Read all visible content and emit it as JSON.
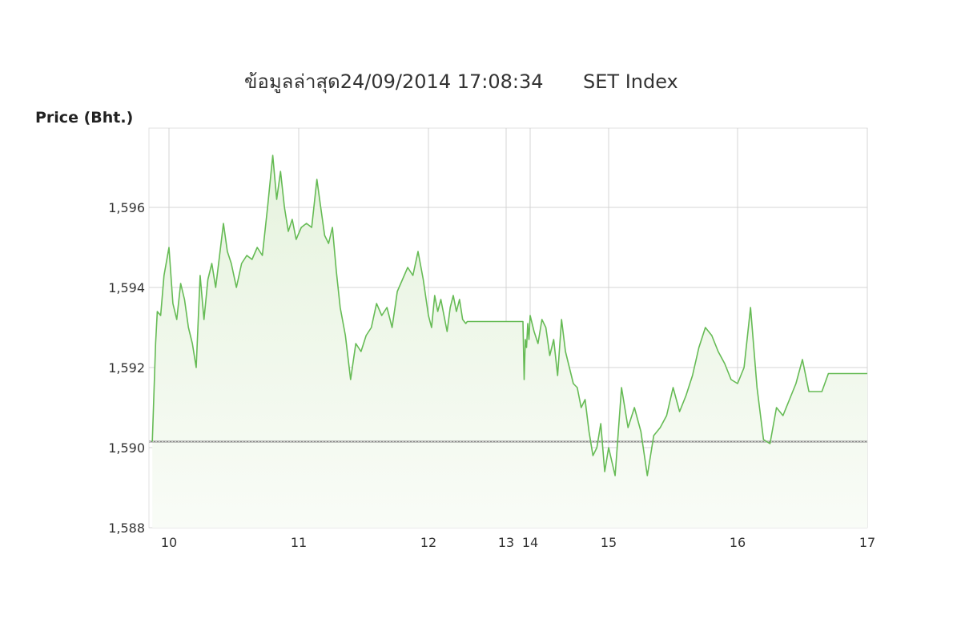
{
  "chart_data": {
    "type": "line",
    "title": "ข้อมูลล่าสุด24/09/2014 17:08:34",
    "subtitle": "SET Index",
    "ylabel": "Price (Bht.)",
    "xlabel": "",
    "ylim": [
      1588,
      1598
    ],
    "xlim": [
      9.88,
      17
    ],
    "yticks": [
      1588,
      1590,
      1592,
      1594,
      1596
    ],
    "ytick_labels": [
      "1,588",
      "1,590",
      "1,592",
      "1,594",
      "1,596"
    ],
    "xticks": [
      10,
      11,
      12,
      13,
      14,
      15,
      16,
      17
    ],
    "xtick_labels": [
      "10",
      "11",
      "12",
      "13",
      "14",
      "15",
      "16",
      "17"
    ],
    "grid": true,
    "reference_line": 1590.15,
    "colors": {
      "line": "#66bb55",
      "fill_top": "#e6f3de",
      "fill_bottom": "#f9fcf7",
      "grid": "#d4d4d4",
      "reference": "#888888"
    },
    "series": [
      {
        "x": [
          9.9,
          9.92,
          9.93,
          9.95,
          9.97,
          10.0,
          10.03,
          10.06,
          10.09,
          10.12,
          10.15,
          10.18,
          10.21,
          10.24,
          10.27,
          10.3,
          10.33,
          10.36,
          10.39,
          10.42,
          10.45,
          10.48,
          10.52,
          10.56,
          10.6,
          10.64,
          10.68,
          10.72,
          10.76,
          10.8,
          10.83,
          10.86,
          10.89,
          10.92,
          10.95,
          10.98,
          11.02,
          11.06,
          11.1,
          11.14,
          11.17,
          11.2,
          11.23,
          11.26,
          11.29,
          11.32,
          11.36,
          11.4,
          11.44,
          11.48,
          11.52,
          11.56,
          11.6,
          11.64,
          11.68,
          11.72,
          11.76,
          11.8,
          11.84,
          11.88,
          11.92,
          11.96,
          12.0,
          12.04,
          12.08,
          12.12,
          12.16,
          12.2,
          12.24,
          12.28,
          12.32,
          12.36,
          12.4,
          12.44,
          12.48,
          12.5,
          12.65,
          12.8,
          12.9,
          13.0,
          13.3,
          13.6,
          13.7,
          13.75,
          13.8,
          13.85,
          13.9,
          13.95,
          14.0,
          14.05,
          14.1,
          14.15,
          14.2,
          14.25,
          14.3,
          14.35,
          14.4,
          14.45,
          14.5,
          14.55,
          14.6,
          14.65,
          14.7,
          14.75,
          14.8,
          14.85,
          14.9,
          14.95,
          15.0,
          15.05,
          15.1,
          15.15,
          15.2,
          15.25,
          15.3,
          15.35,
          15.4,
          15.45,
          15.5,
          15.55,
          15.6,
          15.65,
          15.7,
          15.75,
          15.8,
          15.85,
          15.9,
          15.95,
          16.0,
          16.05,
          16.1,
          16.15,
          16.2,
          16.25,
          16.3,
          16.35,
          16.4,
          16.45,
          16.5,
          16.55,
          16.6,
          16.65,
          16.7,
          16.72,
          17.0
        ],
        "values": [
          1590.15,
          1592.6,
          1593.4,
          1593.3,
          1594.3,
          1595.0,
          1593.6,
          1593.2,
          1594.1,
          1593.7,
          1593.0,
          1592.6,
          1592.0,
          1594.3,
          1593.2,
          1594.2,
          1594.6,
          1594.0,
          1594.8,
          1595.6,
          1594.9,
          1594.6,
          1594.0,
          1594.6,
          1594.8,
          1594.7,
          1595.0,
          1594.8,
          1596.0,
          1597.3,
          1596.2,
          1596.9,
          1596.0,
          1595.4,
          1595.7,
          1595.2,
          1595.5,
          1595.6,
          1595.5,
          1596.7,
          1596.0,
          1595.3,
          1595.1,
          1595.5,
          1594.4,
          1593.5,
          1592.8,
          1591.7,
          1592.6,
          1592.4,
          1592.8,
          1593.0,
          1593.6,
          1593.3,
          1593.5,
          1593.0,
          1593.9,
          1594.2,
          1594.5,
          1594.3,
          1594.9,
          1594.2,
          1593.3,
          1593.0,
          1593.8,
          1593.4,
          1593.7,
          1593.3,
          1592.9,
          1593.5,
          1593.8,
          1593.4,
          1593.7,
          1593.2,
          1593.1,
          1593.15,
          1593.15,
          1593.15,
          1593.15,
          1593.15,
          1593.15,
          1593.15,
          1593.15,
          1591.7,
          1592.7,
          1592.5,
          1593.1,
          1592.7,
          1593.3,
          1592.9,
          1592.6,
          1593.2,
          1593.0,
          1592.3,
          1592.7,
          1591.8,
          1593.2,
          1592.4,
          1592.0,
          1591.6,
          1591.5,
          1591.0,
          1591.2,
          1590.4,
          1589.8,
          1590.0,
          1590.6,
          1589.4,
          1590.0,
          1589.3,
          1591.5,
          1590.5,
          1591.0,
          1590.4,
          1589.3,
          1590.3,
          1590.5,
          1590.8,
          1591.5,
          1590.9,
          1591.3,
          1591.8,
          1592.5,
          1593.0,
          1592.8,
          1592.4,
          1592.1,
          1591.7,
          1591.6,
          1592.0,
          1593.5,
          1591.5,
          1590.2,
          1590.1,
          1591.0,
          1590.8,
          1591.2,
          1591.6,
          1592.2,
          1591.4,
          1591.4,
          1591.4,
          1591.85,
          1591.85,
          1591.85
        ]
      }
    ]
  }
}
